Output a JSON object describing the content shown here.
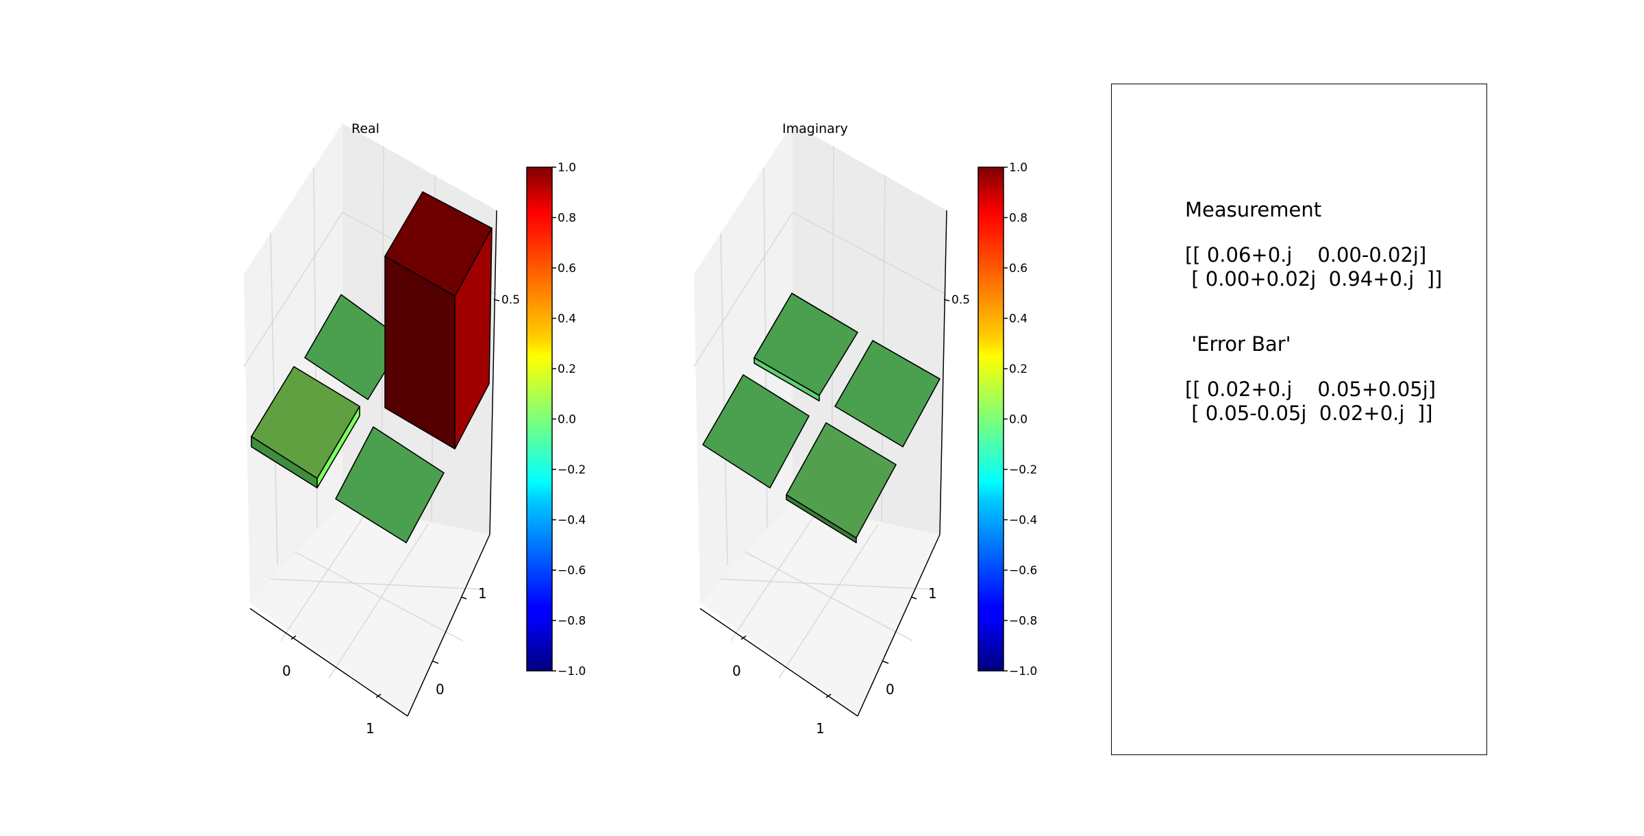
{
  "chart_data": [
    {
      "type": "bar3d",
      "title": "Real",
      "x_categories": [
        "0",
        "1"
      ],
      "y_categories": [
        "0",
        "1"
      ],
      "z_tick_label": "0.5",
      "values": [
        [
          0.06,
          0.0
        ],
        [
          0.0,
          0.94
        ]
      ],
      "colorbar": {
        "min": -1.0,
        "max": 1.0,
        "ticks": [
          "1.0",
          "0.8",
          "0.6",
          "0.4",
          "0.2",
          "0.0",
          "−0.2",
          "−0.4",
          "−0.6",
          "−0.8",
          "−1.0"
        ]
      },
      "grid": true
    },
    {
      "type": "bar3d",
      "title": "Imaginary",
      "x_categories": [
        "0",
        "1"
      ],
      "y_categories": [
        "0",
        "1"
      ],
      "z_tick_label": "0.5",
      "values": [
        [
          0.0,
          -0.02
        ],
        [
          0.02,
          0.0
        ]
      ],
      "colorbar": {
        "min": -1.0,
        "max": 1.0,
        "ticks": [
          "1.0",
          "0.8",
          "0.6",
          "0.4",
          "0.2",
          "0.0",
          "−0.2",
          "−0.4",
          "−0.6",
          "−0.8",
          "−1.0"
        ]
      },
      "grid": true
    }
  ],
  "info": {
    "measurement_label": "Measurement",
    "measurement_line1": "[[ 0.06+0.j    0.00-0.02j]",
    "measurement_line2": " [ 0.00+0.02j  0.94+0.j  ]]",
    "error_label": " 'Error Bar'",
    "error_line1": "[[ 0.02+0.j    0.05+0.05j]",
    "error_line2": " [ 0.05-0.05j  0.02+0.j  ]]"
  },
  "colors": {
    "bar_green": "#4aa04f",
    "bar_dark_red": "#6e0000",
    "bar_red": "#a50000"
  }
}
